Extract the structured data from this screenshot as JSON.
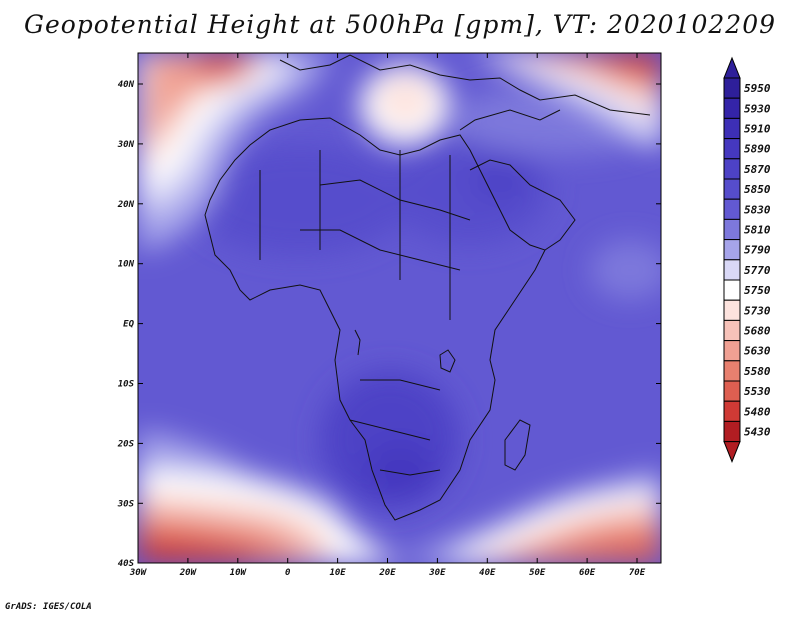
{
  "title": "Geopotential Height at 500hPa [gpm], VT: 2020102209",
  "credit": "GrADS: IGES/COLA",
  "map": {
    "lat_labels": [
      "40N",
      "30N",
      "20N",
      "10N",
      "EQ",
      "10S",
      "20S",
      "30S",
      "40S"
    ],
    "lon_labels": [
      "30W",
      "20W",
      "10W",
      "0",
      "10E",
      "20E",
      "30E",
      "40E",
      "50E",
      "60E",
      "70E"
    ]
  },
  "colorbar": {
    "levels": [
      {
        "label": "5950",
        "color": "#2e1f9a"
      },
      {
        "label": "5930",
        "color": "#3424a8"
      },
      {
        "label": "5910",
        "color": "#3d2fb6"
      },
      {
        "label": "5890",
        "color": "#4538bf"
      },
      {
        "label": "5870",
        "color": "#4d42c6"
      },
      {
        "label": "5850",
        "color": "#564dcc"
      },
      {
        "label": "5830",
        "color": "#6259d2"
      },
      {
        "label": "5810",
        "color": "#7d78dc"
      },
      {
        "label": "5790",
        "color": "#a6a4ea"
      },
      {
        "label": "5770",
        "color": "#d9d8f6"
      },
      {
        "label": "5750",
        "color": "#ffffff"
      },
      {
        "label": "5730",
        "color": "#fde3de"
      },
      {
        "label": "5680",
        "color": "#f7c2b9"
      },
      {
        "label": "5630",
        "color": "#f0a093"
      },
      {
        "label": "5580",
        "color": "#e8806f"
      },
      {
        "label": "5530",
        "color": "#de5f51"
      },
      {
        "label": "5480",
        "color": "#cf3a35"
      },
      {
        "label": "5430",
        "color": "#b11d22"
      }
    ]
  }
}
